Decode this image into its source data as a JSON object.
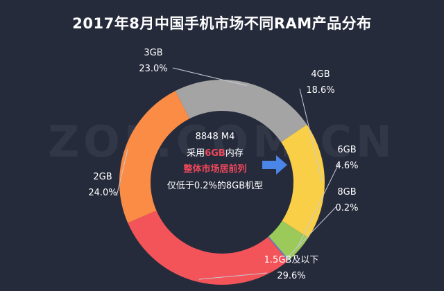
{
  "colors": {
    "background": "#262b3c",
    "highlight": "#f0485a",
    "arrow": "#4a86e8"
  },
  "chart_data": {
    "type": "pie",
    "style": "donut",
    "title": "2017年8月中国手机市场不同RAM产品分布",
    "slices": [
      {
        "label": "3GB",
        "value": 23.0,
        "value_text": "23.0%",
        "color": "#a4a4a4"
      },
      {
        "label": "4GB",
        "value": 18.6,
        "value_text": "18.6%",
        "color": "#f9cf48"
      },
      {
        "label": "6GB",
        "value": 4.6,
        "value_text": "4.6%",
        "color": "#9bc95a"
      },
      {
        "label": "8GB",
        "value": 0.2,
        "value_text": "0.2%",
        "color": "#5b7fd6"
      },
      {
        "label": "1.5GB及以下",
        "value": 29.6,
        "value_text": "29.6%",
        "color": "#f25459"
      },
      {
        "label": "2GB",
        "value": 24.0,
        "value_text": "24.0%",
        "color": "#fa8c46"
      }
    ],
    "center_text": {
      "line1": "8848 M4",
      "line2_prefix": "采用",
      "line2_highlight": "6GB",
      "line2_suffix": "内存",
      "line3": "整体市场居前列",
      "line4": "仅低于0.2%的8GB机型"
    },
    "watermark": "ZOL.COM.CN"
  }
}
